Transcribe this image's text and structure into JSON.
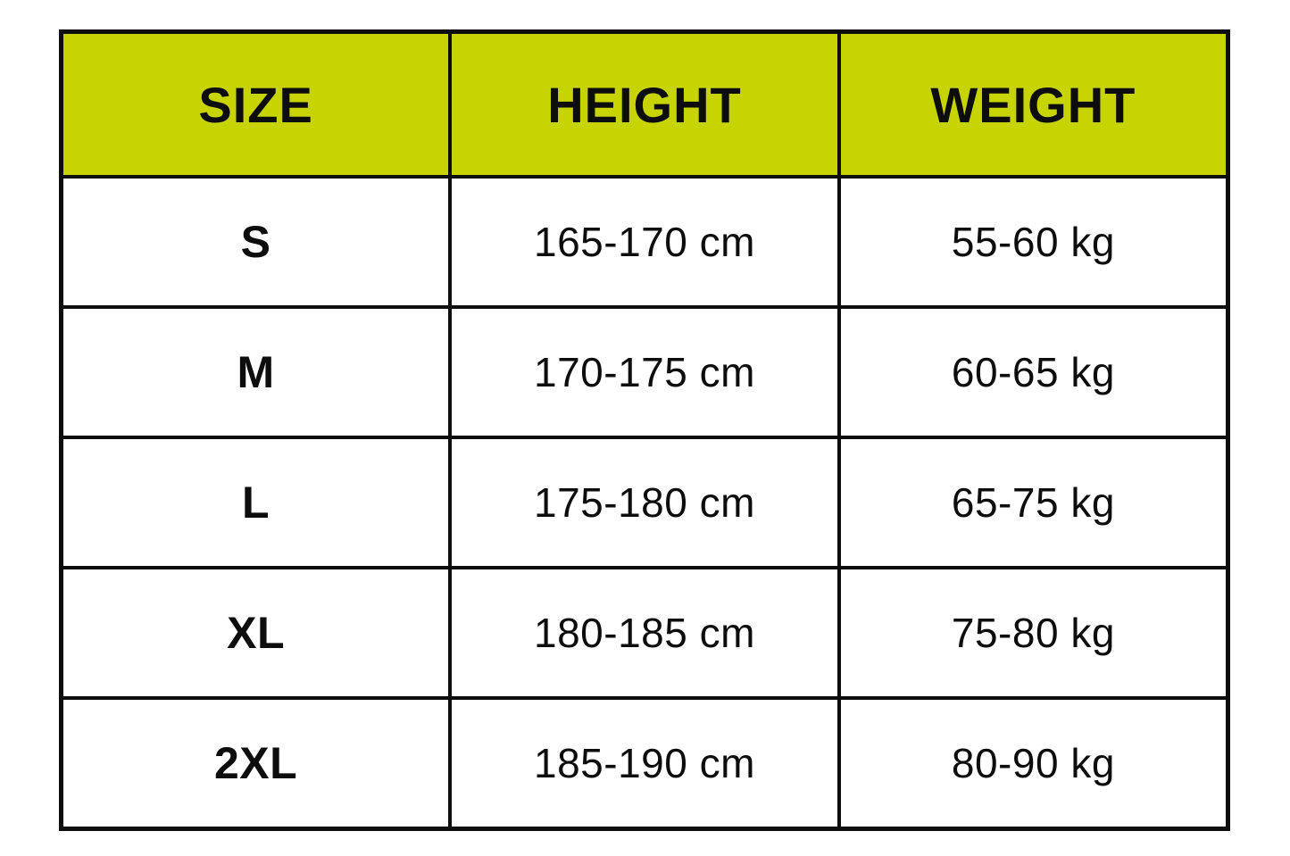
{
  "chart_data": {
    "type": "table",
    "title": "",
    "columns": [
      "SIZE",
      "HEIGHT",
      "WEIGHT"
    ],
    "rows": [
      [
        "S",
        "165-170 cm",
        "55-60 kg"
      ],
      [
        "M",
        "170-175 cm",
        "60-65 kg"
      ],
      [
        "L",
        "175-180 cm",
        "65-75 kg"
      ],
      [
        "XL",
        "180-185 cm",
        "75-80 kg"
      ],
      [
        "2XL",
        "185-190 cm",
        "80-90 kg"
      ]
    ],
    "layout": {
      "grid": "on",
      "header_position": "top"
    }
  },
  "colors": {
    "header_bg": "#c8d402",
    "border": "#0d0d0d",
    "text": "#0d0d0d",
    "row_bg": "#ffffff",
    "page_bg": "#ffffff"
  }
}
